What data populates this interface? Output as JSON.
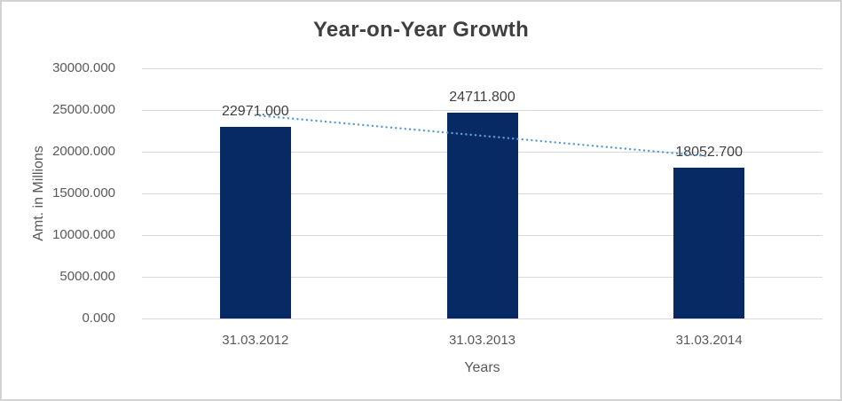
{
  "window": {
    "background": "#ffffff",
    "border_color": "#d2d2d2"
  },
  "chart_data": {
    "type": "bar",
    "title": "Year-on-Year Growth",
    "categories": [
      "31.03.2012",
      "31.03.2013",
      "31.03.2014"
    ],
    "values": [
      22971.0,
      24711.8,
      18052.7
    ],
    "value_labels": [
      "22971.000",
      "24711.800",
      "18052.700"
    ],
    "xlabel": "Years",
    "ylabel": "Amt. in Millions",
    "ylim": [
      0,
      30000
    ],
    "y_tick_step": 5000,
    "y_tick_labels_top_to_bottom": [
      "30000.000",
      "25000.000",
      "20000.000",
      "15000.000",
      "10000.000",
      "5000.000",
      "0.000"
    ],
    "grid": true,
    "legend": "none",
    "trendline": {
      "type": "linear",
      "style": "dotted"
    },
    "colors": {
      "bar": "#082a64",
      "trendline": "#5b9bd5",
      "gridline": "#d9d9d9",
      "axis_text": "#595959",
      "value_label_text": "#404040",
      "title_text": "#404040"
    }
  }
}
